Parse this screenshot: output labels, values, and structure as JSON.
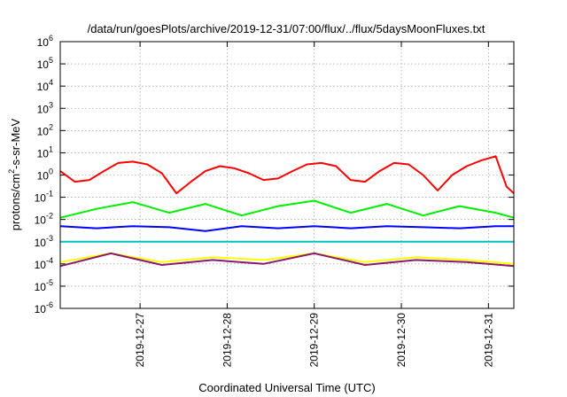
{
  "chart_data": {
    "type": "line",
    "title": "/data/run/goesPlots/archive/2019-12-31/07:00/flux/../flux/5daysMoonFluxes.txt",
    "xlabel": "Coordinated Universal Time (UTC)",
    "ylabel": "protons/cm2-s-sr-MeV",
    "ylabel_parts": [
      "protons/cm",
      "2",
      "-s-sr-MeV"
    ],
    "y_scale": "log",
    "ylim": [
      1e-06,
      1000000.0
    ],
    "y_ticks": [
      {
        "base": "10",
        "exp": "-6",
        "value": 1e-06
      },
      {
        "base": "10",
        "exp": "-5",
        "value": 1e-05
      },
      {
        "base": "10",
        "exp": "-4",
        "value": 0.0001
      },
      {
        "base": "10",
        "exp": "-3",
        "value": 0.001
      },
      {
        "base": "10",
        "exp": "-2",
        "value": 0.01
      },
      {
        "base": "10",
        "exp": "-1",
        "value": 0.1
      },
      {
        "base": "10",
        "exp": "0",
        "value": 1
      },
      {
        "base": "10",
        "exp": "1",
        "value": 10
      },
      {
        "base": "10",
        "exp": "2",
        "value": 100
      },
      {
        "base": "10",
        "exp": "3",
        "value": 1000
      },
      {
        "base": "10",
        "exp": "4",
        "value": 10000
      },
      {
        "base": "10",
        "exp": "5",
        "value": 100000
      },
      {
        "base": "10",
        "exp": "6",
        "value": 1000000
      }
    ],
    "xlim": [
      "2019-12-26 02:00",
      "2019-12-31 07:00"
    ],
    "x_ticks": [
      "2019-12-27",
      "2019-12-28",
      "2019-12-29",
      "2019-12-30",
      "2019-12-31"
    ],
    "grid": true,
    "legend": "none",
    "series": [
      {
        "color": "#ff0000",
        "x": [
          "2019-12-26 02:00",
          "2019-12-26 06:00",
          "2019-12-26 10:00",
          "2019-12-26 14:00",
          "2019-12-26 18:00",
          "2019-12-26 22:00",
          "2019-12-27 02:00",
          "2019-12-27 06:00",
          "2019-12-27 10:00",
          "2019-12-27 14:00",
          "2019-12-27 18:00",
          "2019-12-27 22:00",
          "2019-12-28 02:00",
          "2019-12-28 06:00",
          "2019-12-28 10:00",
          "2019-12-28 14:00",
          "2019-12-28 18:00",
          "2019-12-28 22:00",
          "2019-12-29 02:00",
          "2019-12-29 06:00",
          "2019-12-29 10:00",
          "2019-12-29 14:00",
          "2019-12-29 18:00",
          "2019-12-29 22:00",
          "2019-12-30 02:00",
          "2019-12-30 06:00",
          "2019-12-30 10:00",
          "2019-12-30 14:00",
          "2019-12-30 18:00",
          "2019-12-30 22:00",
          "2019-12-31 02:00",
          "2019-12-31 05:00",
          "2019-12-31 07:00"
        ],
        "values": [
          1.5,
          0.5,
          0.6,
          1.5,
          3.5,
          4,
          3,
          1.2,
          0.15,
          0.5,
          1.5,
          2.5,
          2,
          1.2,
          0.6,
          0.7,
          1.5,
          3,
          3.5,
          2.5,
          0.6,
          0.5,
          1.5,
          3.5,
          3,
          1.0,
          0.2,
          1.0,
          2.5,
          4.5,
          7,
          0.3,
          0.15
        ]
      },
      {
        "color": "#00ee00",
        "x": [
          "2019-12-26 02:00",
          "2019-12-26 12:00",
          "2019-12-26 22:00",
          "2019-12-27 08:00",
          "2019-12-27 18:00",
          "2019-12-28 04:00",
          "2019-12-28 14:00",
          "2019-12-29 00:00",
          "2019-12-29 10:00",
          "2019-12-29 20:00",
          "2019-12-30 06:00",
          "2019-12-30 16:00",
          "2019-12-31 02:00",
          "2019-12-31 07:00"
        ],
        "values": [
          0.012,
          0.03,
          0.06,
          0.02,
          0.05,
          0.015,
          0.04,
          0.07,
          0.02,
          0.05,
          0.015,
          0.04,
          0.02,
          0.012
        ]
      },
      {
        "color": "#0000ff",
        "x": [
          "2019-12-26 02:00",
          "2019-12-26 12:00",
          "2019-12-26 22:00",
          "2019-12-27 08:00",
          "2019-12-27 18:00",
          "2019-12-28 04:00",
          "2019-12-28 14:00",
          "2019-12-29 00:00",
          "2019-12-29 10:00",
          "2019-12-29 20:00",
          "2019-12-30 06:00",
          "2019-12-30 16:00",
          "2019-12-31 02:00",
          "2019-12-31 07:00"
        ],
        "values": [
          0.005,
          0.004,
          0.005,
          0.0045,
          0.003,
          0.005,
          0.004,
          0.005,
          0.004,
          0.005,
          0.0045,
          0.004,
          0.005,
          0.005
        ]
      },
      {
        "color": "#00c0c0",
        "x": [
          "2019-12-26 02:00",
          "2019-12-27 02:00",
          "2019-12-28 02:00",
          "2019-12-29 02:00",
          "2019-12-30 02:00",
          "2019-12-31 02:00",
          "2019-12-31 07:00"
        ],
        "values": [
          0.001,
          0.001,
          0.001,
          0.001,
          0.001,
          0.001,
          0.001
        ]
      },
      {
        "color": "#ffff00",
        "x": [
          "2019-12-26 02:00",
          "2019-12-26 16:00",
          "2019-12-27 06:00",
          "2019-12-27 20:00",
          "2019-12-28 10:00",
          "2019-12-29 00:00",
          "2019-12-29 14:00",
          "2019-12-30 04:00",
          "2019-12-30 18:00",
          "2019-12-31 07:00"
        ],
        "values": [
          0.00012,
          0.0003,
          0.00012,
          0.0002,
          0.00015,
          0.0003,
          0.00012,
          0.0002,
          0.00015,
          0.0001
        ]
      },
      {
        "color": "#8b1a6b",
        "x": [
          "2019-12-26 02:00",
          "2019-12-26 16:00",
          "2019-12-27 06:00",
          "2019-12-27 20:00",
          "2019-12-28 10:00",
          "2019-12-29 00:00",
          "2019-12-29 14:00",
          "2019-12-30 04:00",
          "2019-12-30 18:00",
          "2019-12-31 07:00"
        ],
        "values": [
          8e-05,
          0.0003,
          9e-05,
          0.00015,
          0.0001,
          0.0003,
          9e-05,
          0.00015,
          0.00012,
          8e-05
        ]
      }
    ]
  }
}
